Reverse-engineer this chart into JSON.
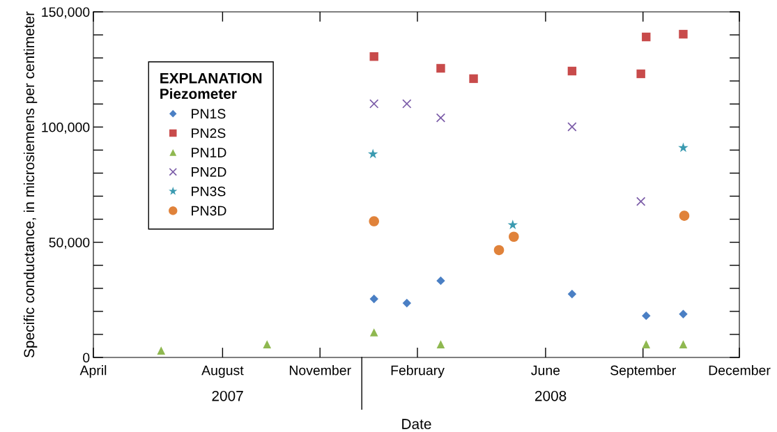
{
  "chart_data": {
    "type": "scatter",
    "xlabel": "Date",
    "ylabel": "Specific conductance, in microsiemens per centimeter",
    "legend_title": "EXPLANATION\nPiezometer",
    "legend": "top left",
    "grid": false,
    "annotations": [
      "2007",
      "2008"
    ],
    "xlim": [
      "2007-04-01",
      "2008-12-01"
    ],
    "xticks": [
      {
        "value": "2007-04-01",
        "label": "April"
      },
      {
        "value": "2007-08-01",
        "label": "August"
      },
      {
        "value": "2007-11-01",
        "label": "November"
      },
      {
        "value": "2008-02-01",
        "label": "February"
      },
      {
        "value": "2008-06-01",
        "label": "June"
      },
      {
        "value": "2008-09-01",
        "label": "September"
      },
      {
        "value": "2008-12-01",
        "label": "December"
      }
    ],
    "ylim": [
      0,
      150000
    ],
    "yticks": [
      {
        "value": 0,
        "label": "0"
      },
      {
        "value": 10000,
        "label": null
      },
      {
        "value": 20000,
        "label": null
      },
      {
        "value": 30000,
        "label": null
      },
      {
        "value": 40000,
        "label": null
      },
      {
        "value": 50000,
        "label": "50,000"
      },
      {
        "value": 60000,
        "label": null
      },
      {
        "value": 70000,
        "label": null
      },
      {
        "value": 80000,
        "label": null
      },
      {
        "value": 90000,
        "label": null
      },
      {
        "value": 100000,
        "label": "100,000"
      },
      {
        "value": 110000,
        "label": null
      },
      {
        "value": 120000,
        "label": null
      },
      {
        "value": 130000,
        "label": null
      },
      {
        "value": 140000,
        "label": null
      },
      {
        "value": 150000,
        "label": "150,000"
      }
    ],
    "series": [
      {
        "name": "PN1S",
        "color": "#4a7fc4",
        "marker": "diamond",
        "x": [
          "2007-12-22",
          "2008-01-22",
          "2008-02-23",
          "2008-06-26",
          "2008-09-04",
          "2008-10-09"
        ],
        "values": [
          25400,
          23600,
          33300,
          27500,
          18100,
          18800
        ]
      },
      {
        "name": "PN2S",
        "color": "#c84b4b",
        "marker": "square",
        "x": [
          "2007-12-22",
          "2008-02-23",
          "2008-03-25",
          "2008-06-26",
          "2008-08-30",
          "2008-09-04",
          "2008-10-09"
        ],
        "values": [
          130600,
          125500,
          121000,
          124300,
          123100,
          139100,
          140300
        ]
      },
      {
        "name": "PN1D",
        "color": "#8fb850",
        "marker": "triangle",
        "x": [
          "2007-06-04",
          "2007-09-12",
          "2007-12-22",
          "2008-02-23",
          "2008-09-04",
          "2008-10-09"
        ],
        "values": [
          3000,
          5700,
          10900,
          5700,
          5700,
          5700
        ]
      },
      {
        "name": "PN2D",
        "color": "#7b5ca8",
        "marker": "cross",
        "x": [
          "2007-12-22",
          "2008-01-22",
          "2008-02-23",
          "2008-06-26",
          "2008-08-30"
        ],
        "values": [
          110100,
          110100,
          104000,
          100100,
          67700
        ]
      },
      {
        "name": "PN3S",
        "color": "#3a9ab0",
        "marker": "star",
        "x": [
          "2007-12-21",
          "2008-05-01",
          "2008-10-09"
        ],
        "values": [
          88300,
          57500,
          91000
        ]
      },
      {
        "name": "PN3D",
        "color": "#e0823a",
        "marker": "circle",
        "x": [
          "2007-12-22",
          "2008-04-18",
          "2008-05-02",
          "2008-10-10"
        ],
        "values": [
          59100,
          46600,
          52400,
          61500
        ]
      }
    ]
  }
}
